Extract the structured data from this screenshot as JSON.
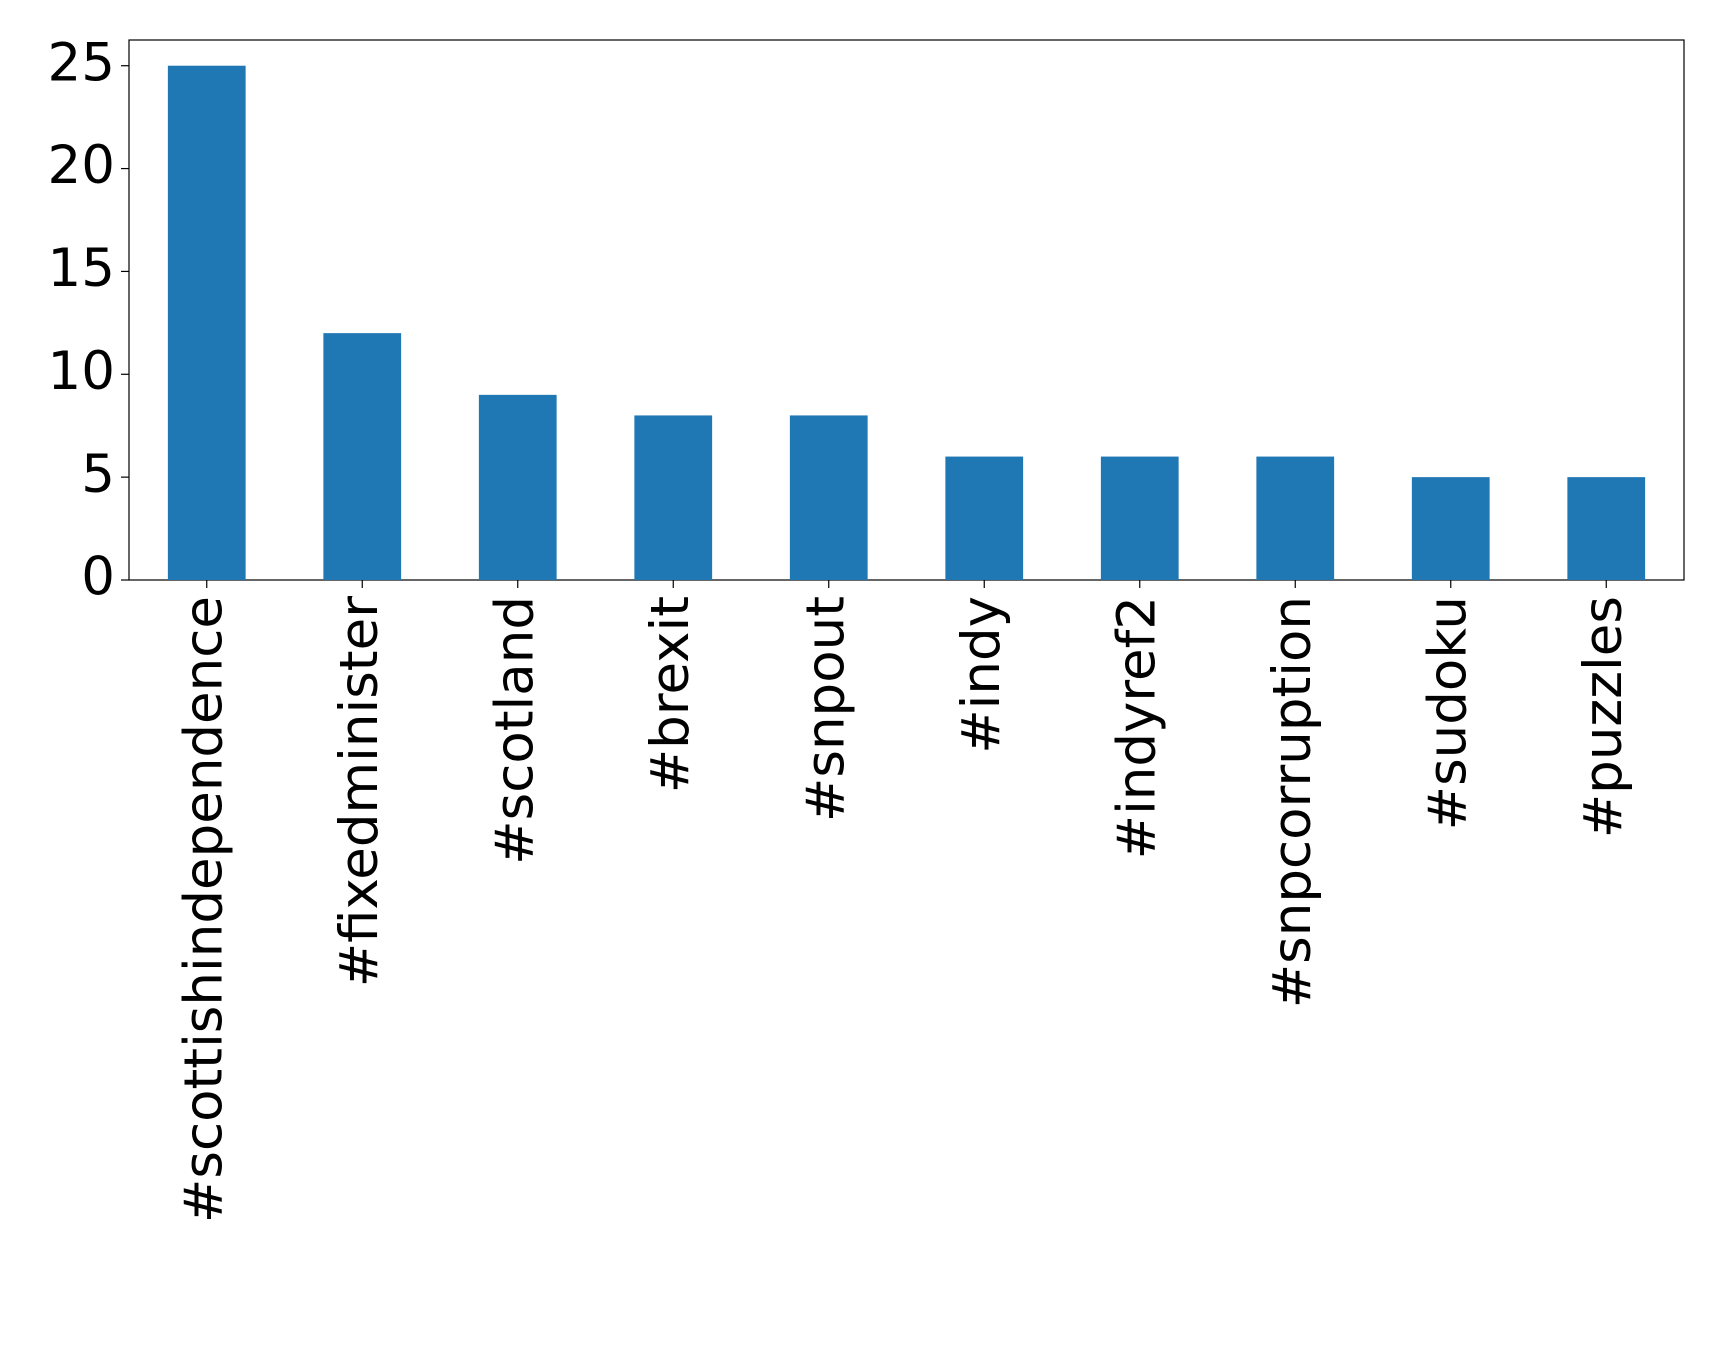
{
  "chart_data": {
    "type": "bar",
    "categories": [
      "#scottishindependence",
      "#fixedminister",
      "#scotland",
      "#brexit",
      "#snpout",
      "#indy",
      "#indyref2",
      "#snpcorruption",
      "#sudoku",
      "#puzzles"
    ],
    "values": [
      25,
      12,
      9,
      8,
      8,
      6,
      6,
      6,
      5,
      5
    ],
    "color": "#1f77b4",
    "ylim": [
      0,
      26.25
    ],
    "yticks": [
      0,
      5,
      10,
      15,
      20,
      25
    ],
    "grid": false
  }
}
